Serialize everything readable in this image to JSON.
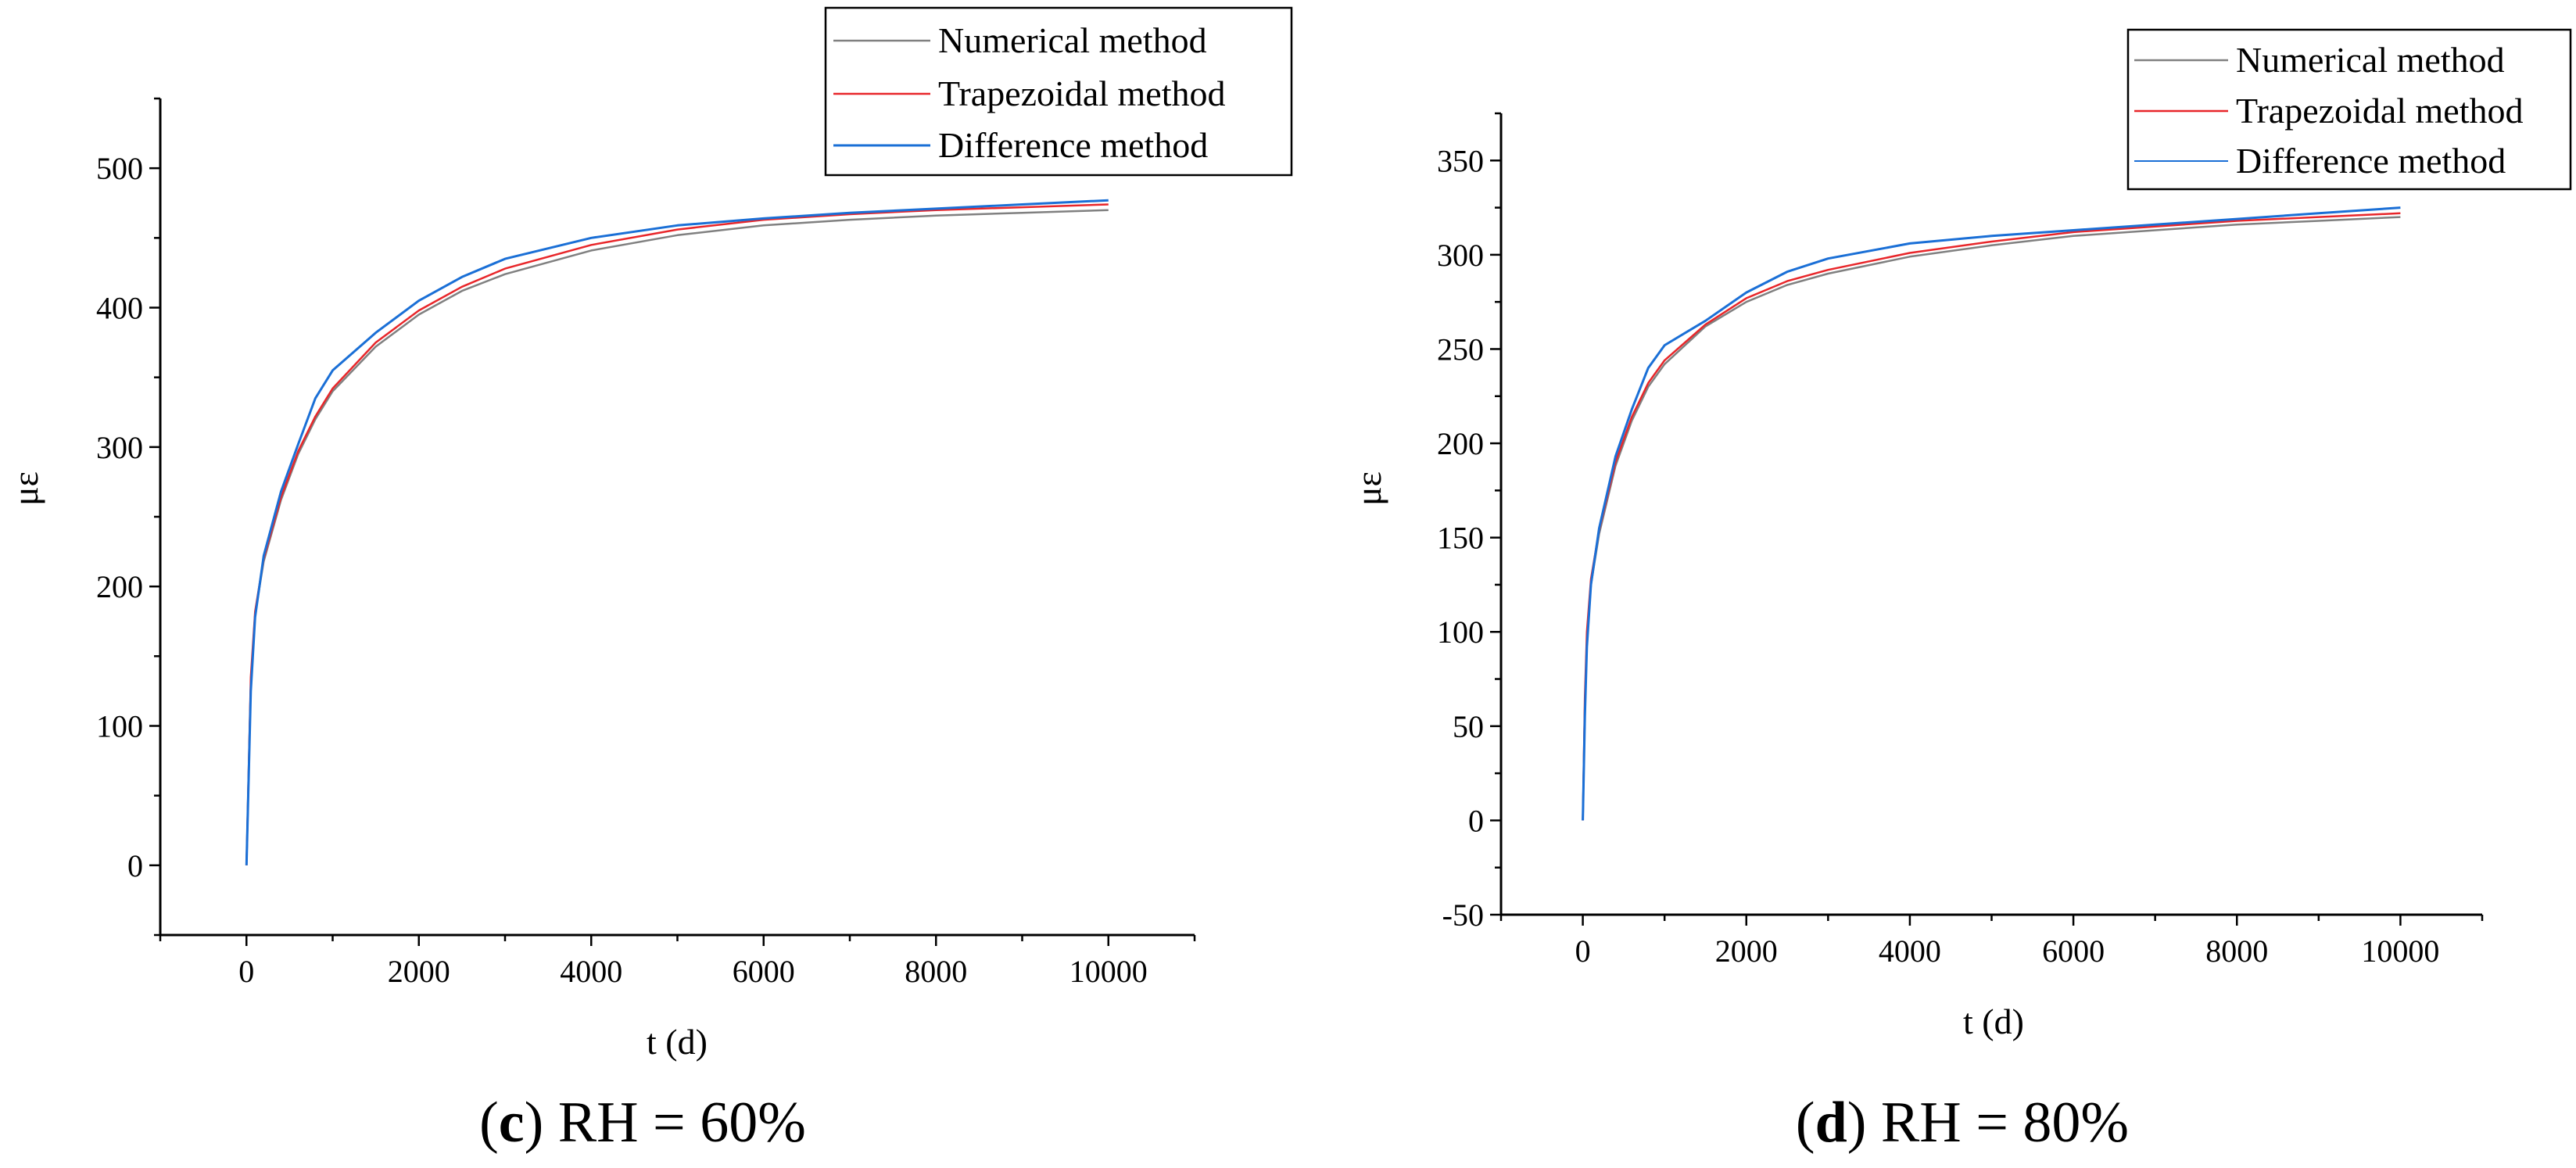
{
  "chart_data": [
    {
      "type": "line",
      "panel": "c",
      "caption_letter": "c",
      "caption_text": "RH = 60%",
      "xlabel": "t (d)",
      "ylabel": "με",
      "xlim": [
        -1000,
        11000
      ],
      "ylim": [
        -50,
        550
      ],
      "xticks": [
        0,
        2000,
        4000,
        6000,
        8000,
        10000
      ],
      "yticks": [
        0,
        100,
        200,
        300,
        400,
        500
      ],
      "grid": false,
      "legend_position": "top-right",
      "series": [
        {
          "name": "Numerical method",
          "color": "#808080",
          "x": [
            0,
            50,
            100,
            200,
            400,
            600,
            800,
            1000,
            1500,
            2000,
            2500,
            3000,
            4000,
            5000,
            6000,
            7000,
            8000,
            9000,
            10000
          ],
          "y": [
            0,
            130,
            180,
            218,
            262,
            295,
            320,
            340,
            372,
            395,
            412,
            424,
            441,
            452,
            459,
            463,
            466,
            468,
            470
          ]
        },
        {
          "name": "Trapezoidal method",
          "color": "#e8262a",
          "x": [
            0,
            50,
            100,
            200,
            400,
            600,
            800,
            1000,
            1500,
            2000,
            2500,
            3000,
            4000,
            5000,
            6000,
            7000,
            8000,
            9000,
            10000
          ],
          "y": [
            0,
            135,
            182,
            220,
            264,
            297,
            322,
            342,
            375,
            398,
            415,
            428,
            445,
            456,
            463,
            467,
            470,
            472,
            474
          ]
        },
        {
          "name": "Difference method",
          "color": "#1a6fd6",
          "x": [
            0,
            50,
            100,
            200,
            400,
            600,
            800,
            1000,
            1500,
            2000,
            2500,
            3000,
            4000,
            5000,
            6000,
            7000,
            8000,
            9000,
            10000
          ],
          "y": [
            0,
            125,
            178,
            222,
            268,
            302,
            335,
            355,
            382,
            405,
            422,
            435,
            450,
            459,
            464,
            468,
            471,
            474,
            477
          ]
        }
      ]
    },
    {
      "type": "line",
      "panel": "d",
      "caption_letter": "d",
      "caption_text": "RH = 80%",
      "xlabel": "t (d)",
      "ylabel": "με",
      "xlim": [
        -1000,
        11000
      ],
      "ylim": [
        -50,
        375
      ],
      "xticks": [
        0,
        2000,
        4000,
        6000,
        8000,
        10000
      ],
      "yticks": [
        -50,
        0,
        50,
        100,
        150,
        200,
        250,
        300,
        350
      ],
      "grid": false,
      "legend_position": "top-right",
      "series": [
        {
          "name": "Numerical method",
          "color": "#808080",
          "x": [
            0,
            25,
            50,
            100,
            200,
            400,
            600,
            800,
            1000,
            1500,
            2000,
            2500,
            3000,
            4000,
            5000,
            6000,
            7000,
            8000,
            9000,
            10000
          ],
          "y": [
            0,
            60,
            95,
            125,
            152,
            188,
            212,
            230,
            242,
            262,
            275,
            284,
            290,
            299,
            305,
            310,
            313,
            316,
            318,
            320
          ]
        },
        {
          "name": "Trapezoidal method",
          "color": "#e8262a",
          "x": [
            0,
            25,
            50,
            100,
            200,
            400,
            600,
            800,
            1000,
            1500,
            2000,
            2500,
            3000,
            4000,
            5000,
            6000,
            7000,
            8000,
            9000,
            10000
          ],
          "y": [
            0,
            65,
            100,
            128,
            154,
            190,
            214,
            232,
            244,
            263,
            277,
            286,
            292,
            301,
            307,
            312,
            315,
            318,
            320,
            322
          ]
        },
        {
          "name": "Difference method",
          "color": "#1a6fd6",
          "x": [
            0,
            25,
            50,
            100,
            200,
            400,
            600,
            800,
            1000,
            1500,
            2000,
            2500,
            3000,
            4000,
            5000,
            6000,
            7000,
            8000,
            9000,
            10000
          ],
          "y": [
            0,
            55,
            92,
            125,
            155,
            193,
            218,
            240,
            252,
            265,
            280,
            291,
            298,
            306,
            310,
            313,
            316,
            319,
            322,
            325
          ]
        }
      ]
    }
  ]
}
